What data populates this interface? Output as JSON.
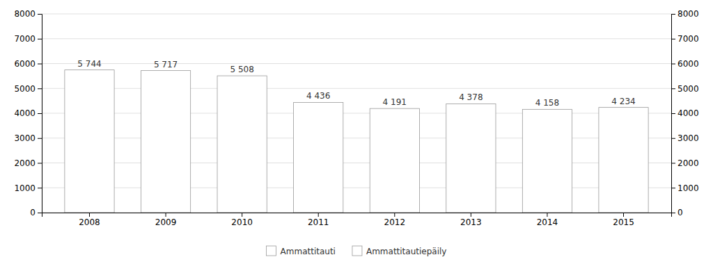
{
  "chart_data": {
    "type": "bar",
    "categories": [
      "2008",
      "2009",
      "2010",
      "2011",
      "2012",
      "2013",
      "2014",
      "2015"
    ],
    "series": [
      {
        "name": "Ammattitauti",
        "color": "#ffffff",
        "values": [
          5744,
          5717,
          5508,
          4436,
          4191,
          4378,
          4158,
          4234
        ],
        "value_labels": [
          "5 744",
          "5 717",
          "5 508",
          "4 436",
          "4 191",
          "4 378",
          "4 158",
          "4 234"
        ]
      },
      {
        "name": "Ammattitautiepäily",
        "color": "#ffffff",
        "values": [
          null,
          null,
          null,
          null,
          null,
          null,
          null,
          null
        ]
      }
    ],
    "stacked": true,
    "data_labels": true,
    "ylim": [
      0,
      8000
    ],
    "yticks": [
      0,
      1000,
      2000,
      3000,
      4000,
      5000,
      6000,
      7000,
      8000
    ],
    "y2lim": [
      0,
      8000
    ],
    "y2ticks": [
      0,
      1000,
      2000,
      3000,
      4000,
      5000,
      6000,
      7000,
      8000
    ],
    "grid": true,
    "legend": "bottom"
  }
}
